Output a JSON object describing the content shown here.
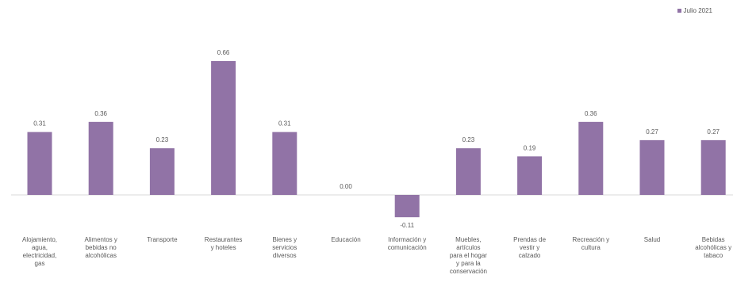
{
  "chart_data": {
    "type": "bar",
    "categories": [
      "Alojamiento, agua, electricidad, gas",
      "Alimentos y bebidas no alcohólicas",
      "Transporte",
      "Restaurantes y hoteles",
      "Bienes y servicios diversos",
      "Educación",
      "Información y comunicación",
      "Muebles, artículos para el hogar y para la conservación",
      "Prendas de vestir y calzado",
      "Recreación y cultura",
      "Salud",
      "Bebidas alcohólicas y tabaco"
    ],
    "series": [
      {
        "name": "Julio 2021",
        "values": [
          0.31,
          0.36,
          0.23,
          0.66,
          0.31,
          0.0,
          -0.11,
          0.23,
          0.19,
          0.36,
          0.27,
          0.27
        ]
      }
    ],
    "value_labels": [
      "0.31",
      "0.36",
      "0.23",
      "0.66",
      "0.31",
      "0.00",
      "-0.11",
      "0.23",
      "0.19",
      "0.36",
      "0.27",
      "0.27"
    ],
    "ylim": [
      -0.11,
      0.66
    ],
    "grid": false,
    "legend_position": "top-right",
    "bar_color": "#9173a6",
    "axis_color": "#d9d9d9",
    "label_color": "#595959"
  }
}
